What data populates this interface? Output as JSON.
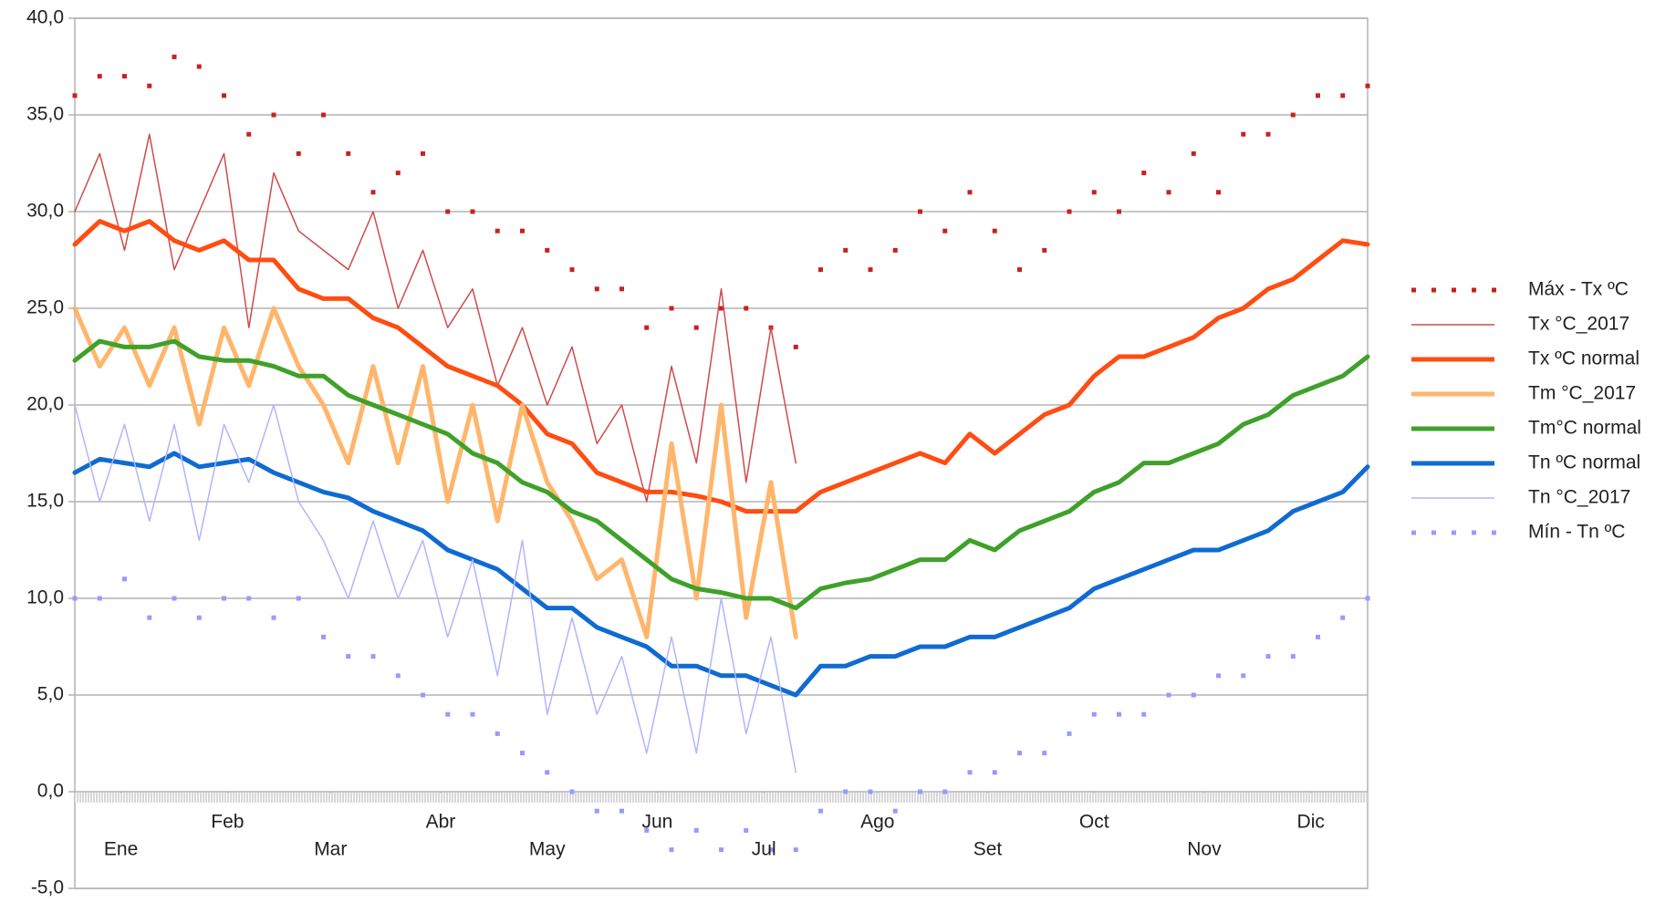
{
  "chart_data": {
    "type": "line",
    "x": [
      1,
      8,
      15,
      22,
      29,
      36,
      43,
      50,
      57,
      64,
      71,
      78,
      85,
      92,
      99,
      106,
      113,
      120,
      127,
      134,
      141,
      148,
      155,
      162,
      169,
      176,
      183,
      190,
      197,
      204,
      211,
      218,
      225,
      232,
      239,
      246,
      253,
      260,
      267,
      274,
      281,
      288,
      295,
      302,
      309,
      316,
      323,
      330,
      337,
      344,
      351,
      358,
      365
    ],
    "xlim": [
      1,
      365
    ],
    "xticks": [
      {
        "value": 14,
        "label": "Ene"
      },
      {
        "value": 44,
        "label": "Feb"
      },
      {
        "value": 73,
        "label": "Mar"
      },
      {
        "value": 104,
        "label": "Abr"
      },
      {
        "value": 134,
        "label": "May"
      },
      {
        "value": 165,
        "label": "Jun"
      },
      {
        "value": 195,
        "label": "Jul"
      },
      {
        "value": 227,
        "label": "Ago"
      },
      {
        "value": 258,
        "label": "Set"
      },
      {
        "value": 288,
        "label": "Oct"
      },
      {
        "value": 319,
        "label": "Nov"
      },
      {
        "value": 349,
        "label": "Dic"
      }
    ],
    "ylim": [
      -5,
      40
    ],
    "yticks": [
      {
        "value": -5,
        "label": "-5,0"
      },
      {
        "value": 0,
        "label": "0,0"
      },
      {
        "value": 5,
        "label": "5,0"
      },
      {
        "value": 10,
        "label": "10,0"
      },
      {
        "value": 15,
        "label": "15,0"
      },
      {
        "value": 20,
        "label": "20,0"
      },
      {
        "value": 25,
        "label": "25,0"
      },
      {
        "value": 30,
        "label": "30,0"
      },
      {
        "value": 35,
        "label": "35,0"
      },
      {
        "value": 40,
        "label": "40,0"
      }
    ],
    "grid": true,
    "legend": "right",
    "series": [
      {
        "name": "Máx - Tx ºC",
        "color": "#c9211e",
        "style": "dots",
        "values": [
          36,
          37,
          37,
          36.5,
          38,
          37.5,
          36,
          34,
          35,
          33,
          35,
          33,
          31,
          32,
          33,
          30,
          30,
          29,
          29,
          28,
          27,
          26,
          26,
          24,
          25,
          24,
          25,
          25,
          24,
          23,
          27,
          28,
          27,
          28,
          30,
          29,
          31,
          29,
          27,
          28,
          30,
          31,
          30,
          32,
          31,
          33,
          31,
          34,
          34,
          35,
          36,
          36,
          36.5
        ]
      },
      {
        "name": "Tx °C_2017",
        "color": "#d04a4a",
        "style": "thin",
        "values": [
          30,
          33,
          28,
          34,
          27,
          30,
          33,
          24,
          32,
          29,
          28,
          27,
          30,
          25,
          28,
          24,
          26,
          21,
          24,
          20,
          23,
          18,
          20,
          15,
          22,
          17,
          26,
          16,
          24,
          17,
          null,
          null,
          null,
          null,
          null,
          null,
          null,
          null,
          null,
          null,
          null,
          null,
          null,
          null,
          null,
          null,
          null,
          null,
          null,
          null,
          null,
          null,
          null
        ]
      },
      {
        "name": "Tx ºC normal",
        "color": "#ff4d12",
        "style": "thick",
        "values": [
          28.3,
          29.5,
          29,
          29.5,
          28.5,
          28,
          28.5,
          27.5,
          27.5,
          26,
          25.5,
          25.5,
          24.5,
          24,
          23,
          22,
          21.5,
          21,
          20,
          18.5,
          18,
          16.5,
          16,
          15.5,
          15.5,
          15.3,
          15,
          14.5,
          14.5,
          14.5,
          15.5,
          16,
          16.5,
          17,
          17.5,
          17,
          18.5,
          17.5,
          18.5,
          19.5,
          20,
          21.5,
          22.5,
          22.5,
          23,
          23.5,
          24.5,
          25,
          26,
          26.5,
          27.5,
          28.5,
          28.3
        ]
      },
      {
        "name": "Tm °C_2017",
        "color": "#ffb66c",
        "style": "thick",
        "values": [
          25,
          22,
          24,
          21,
          24,
          19,
          24,
          21,
          25,
          22,
          20,
          17,
          22,
          17,
          22,
          15,
          20,
          14,
          20,
          16,
          14,
          11,
          12,
          8,
          18,
          10,
          20,
          9,
          16,
          8,
          null,
          null,
          null,
          null,
          null,
          null,
          null,
          null,
          null,
          null,
          null,
          null,
          null,
          null,
          null,
          null,
          null,
          null,
          null,
          null,
          null,
          null,
          null
        ]
      },
      {
        "name": "Tm°C normal",
        "color": "#3fa12a",
        "style": "thick",
        "values": [
          22.3,
          23.3,
          23,
          23,
          23.3,
          22.5,
          22.3,
          22.3,
          22,
          21.5,
          21.5,
          20.5,
          20,
          19.5,
          19,
          18.5,
          17.5,
          17,
          16,
          15.5,
          14.5,
          14,
          13,
          12,
          11,
          10.5,
          10.3,
          10,
          10,
          9.5,
          10.5,
          10.8,
          11,
          11.5,
          12,
          12,
          13,
          12.5,
          13.5,
          14,
          14.5,
          15.5,
          16,
          17,
          17,
          17.5,
          18,
          19,
          19.5,
          20.5,
          21,
          21.5,
          22.5
        ]
      },
      {
        "name": "Tn ºC normal",
        "color": "#0f6bd1",
        "style": "thick",
        "values": [
          16.5,
          17.2,
          17,
          16.8,
          17.5,
          16.8,
          17,
          17.2,
          16.5,
          16,
          15.5,
          15.2,
          14.5,
          14,
          13.5,
          12.5,
          12,
          11.5,
          10.5,
          9.5,
          9.5,
          8.5,
          8,
          7.5,
          6.5,
          6.5,
          6,
          6,
          5.5,
          5,
          6.5,
          6.5,
          7,
          7,
          7.5,
          7.5,
          8,
          8,
          8.5,
          9,
          9.5,
          10.5,
          11,
          11.5,
          12,
          12.5,
          12.5,
          13,
          13.5,
          14.5,
          15,
          15.5,
          16.8
        ]
      },
      {
        "name": "Tn °C_2017",
        "color": "#b3b3ff",
        "style": "thin",
        "values": [
          20,
          15,
          19,
          14,
          19,
          13,
          19,
          16,
          20,
          15,
          13,
          10,
          14,
          10,
          13,
          8,
          12,
          6,
          13,
          4,
          9,
          4,
          7,
          2,
          8,
          2,
          10,
          3,
          8,
          1,
          null,
          null,
          null,
          null,
          null,
          null,
          null,
          null,
          null,
          null,
          null,
          null,
          null,
          null,
          null,
          null,
          null,
          null,
          null,
          null,
          null,
          null,
          null
        ]
      },
      {
        "name": "Mín - Tn ºC",
        "color": "#9999ff",
        "style": "dots",
        "values": [
          10,
          10,
          11,
          9,
          10,
          9,
          10,
          10,
          9,
          10,
          8,
          7,
          7,
          6,
          5,
          4,
          4,
          3,
          2,
          1,
          0,
          -1,
          -1,
          -2,
          -3,
          -2,
          -3,
          -2,
          -3,
          -3,
          -1,
          0,
          0,
          -1,
          0,
          0,
          1,
          1,
          2,
          2,
          3,
          4,
          4,
          4,
          5,
          5,
          6,
          6,
          7,
          7,
          8,
          9,
          10
        ]
      }
    ]
  }
}
